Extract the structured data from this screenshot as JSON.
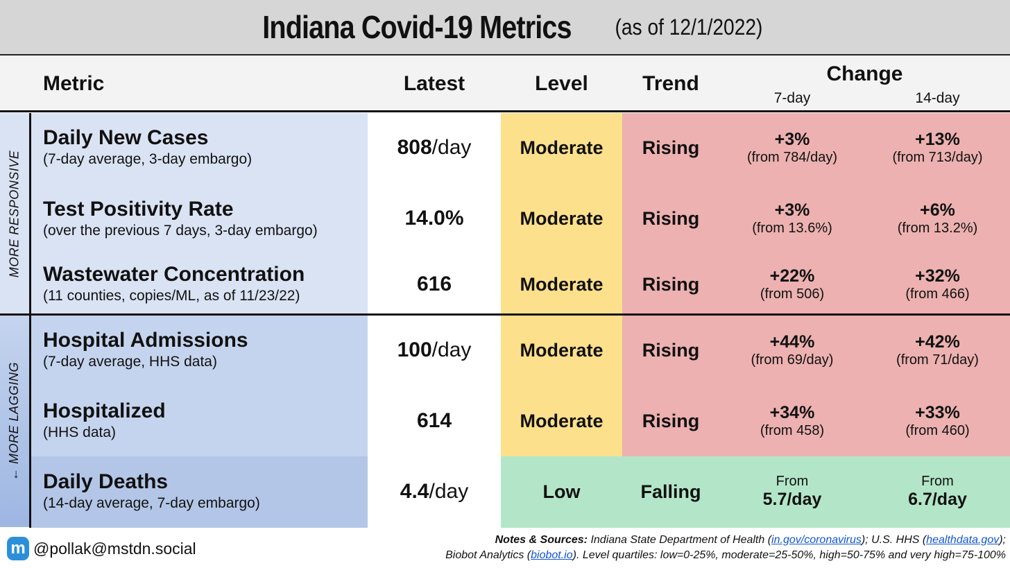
{
  "title": {
    "main": "Indiana Covid-19 Metrics",
    "sub": "(as of 12/1/2022)"
  },
  "header": {
    "metric": "Metric",
    "latest": "Latest",
    "level": "Level",
    "trend": "Trend",
    "change": "Change",
    "change_7": "7-day",
    "change_14": "14-day"
  },
  "side_labels": {
    "responsive": "MORE RESPONSIVE",
    "lagging": "← MORE LAGGING"
  },
  "rows": [
    {
      "name": "Daily New Cases",
      "desc": "(7-day average, 3-day embargo)",
      "latest_num": "808",
      "latest_unit": "/day",
      "level": "Moderate",
      "trend": "Rising",
      "c7_pct": "+3%",
      "c7_from": "(from 784/day)",
      "c14_pct": "+13%",
      "c14_from": "(from 713/day)"
    },
    {
      "name": "Test Positivity Rate",
      "desc": "(over the previous 7 days, 3-day embargo)",
      "latest_num": "14.0%",
      "latest_unit": "",
      "level": "Moderate",
      "trend": "Rising",
      "c7_pct": "+3%",
      "c7_from": "(from 13.6%)",
      "c14_pct": "+6%",
      "c14_from": "(from 13.2%)"
    },
    {
      "name": "Wastewater Concentration",
      "desc": "(11 counties, copies/ML, as of 11/23/22)",
      "latest_num": "616",
      "latest_unit": "",
      "level": "Moderate",
      "trend": "Rising",
      "c7_pct": "+22%",
      "c7_from": "(from 506)",
      "c14_pct": "+32%",
      "c14_from": "(from 466)"
    },
    {
      "name": "Hospital Admissions",
      "desc": "(7-day average, HHS data)",
      "latest_num": "100",
      "latest_unit": "/day",
      "level": "Moderate",
      "trend": "Rising",
      "c7_pct": "+44%",
      "c7_from": "(from 69/day)",
      "c14_pct": "+42%",
      "c14_from": "(from 71/day)"
    },
    {
      "name": "Hospitalized",
      "desc": "(HHS data)",
      "latest_num": "614",
      "latest_unit": "",
      "level": "Moderate",
      "trend": "Rising",
      "c7_pct": "+34%",
      "c7_from": "(from 458)",
      "c14_pct": "+33%",
      "c14_from": "(from 460)"
    },
    {
      "name": "Daily Deaths",
      "desc": "(14-day average, 7-day embargo)",
      "latest_num": "4.4",
      "latest_unit": "/day",
      "level": "Low",
      "trend": "Falling",
      "c7_small": "From",
      "c7_big": "5.7/day",
      "c14_small": "From",
      "c14_big": "6.7/day"
    }
  ],
  "footer": {
    "handle": "@pollak@mstdn.social",
    "notes_label": "Notes & Sources:",
    "notes_1a": " Indiana State Department of Health (",
    "link_1": "in.gov/coronavirus",
    "notes_1b": "); U.S. HHS (",
    "link_2": "healthdata.gov",
    "notes_1c": ");",
    "notes_2a": "Biobot Analytics (",
    "link_3": "biobot.io",
    "notes_2b": "). Level quartiles: low=0-25%, moderate=25-50%, high=50-75% and very high=75-100%"
  },
  "colors": {
    "label_light": "#dae3f4",
    "label_mid": "#c5d4ee",
    "label_dark": "#b3c6e7",
    "moderate": "#fde08c",
    "rising": "#ecb1b0",
    "low_falling": "#b3e6c9",
    "icon": "#2b90d9"
  }
}
